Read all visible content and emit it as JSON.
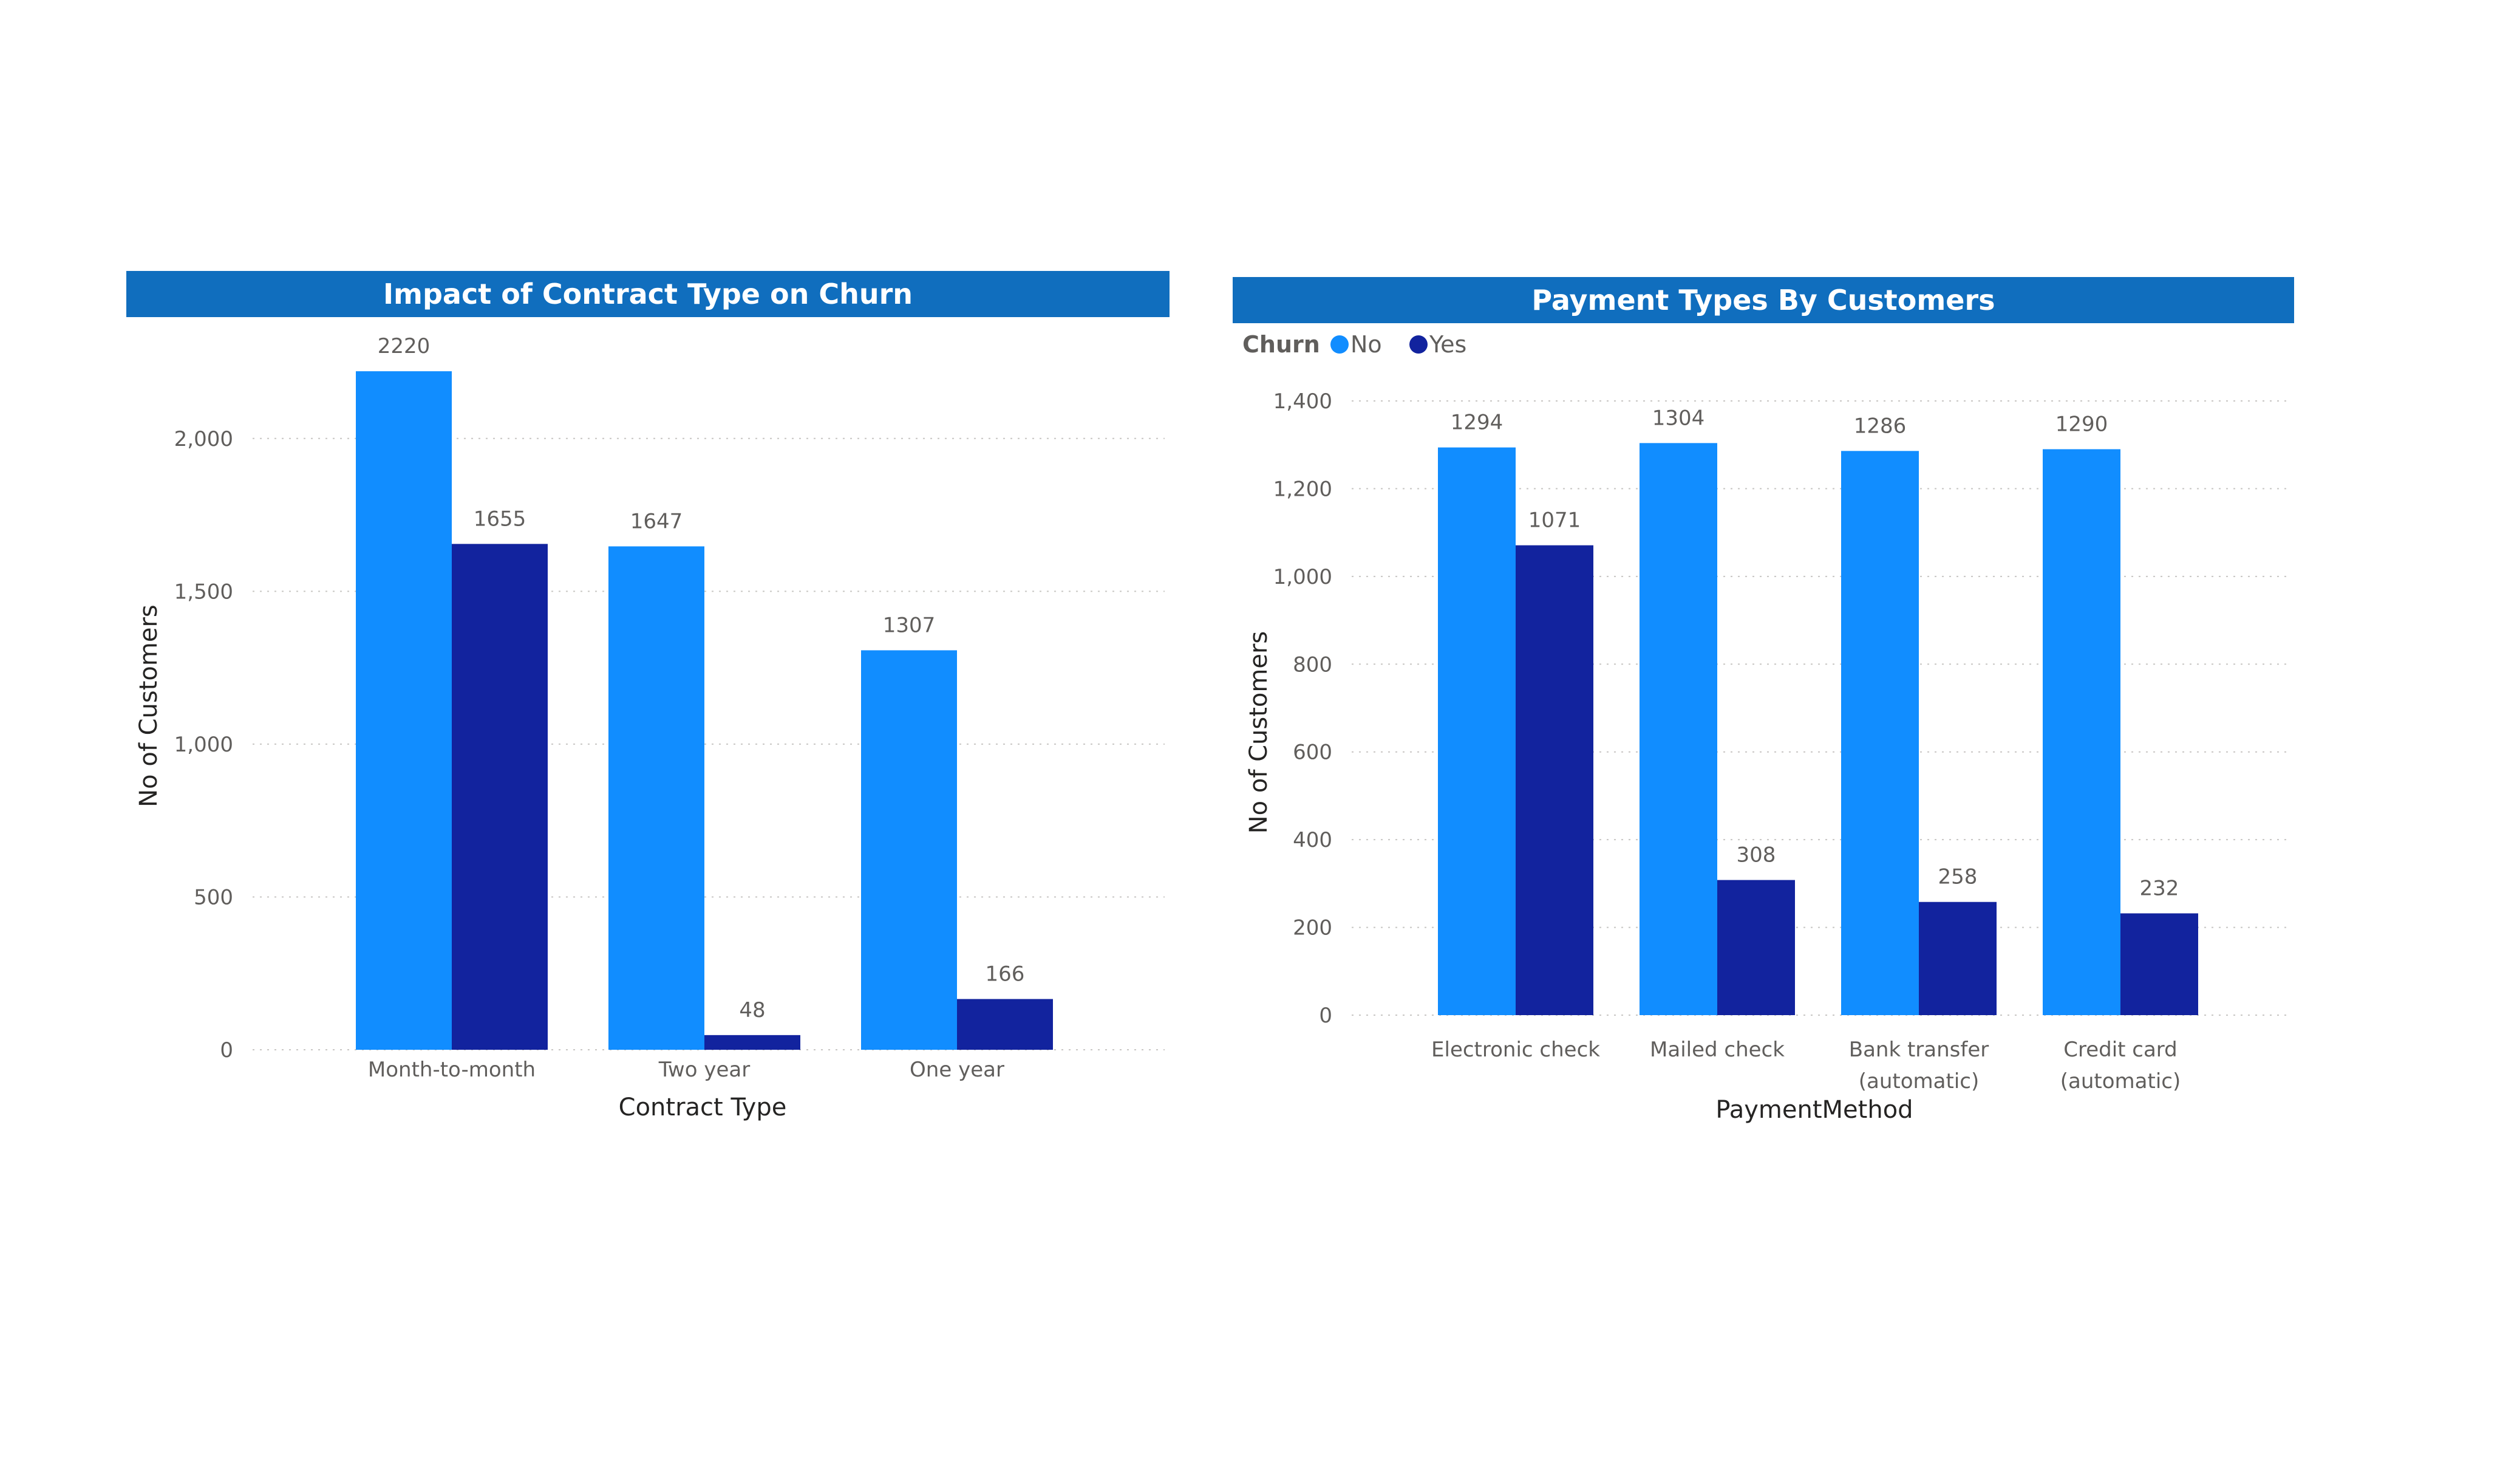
{
  "colors": {
    "no": "#118dff",
    "yes": "#12239e",
    "title_bg": "#106ebe"
  },
  "chart_data": [
    {
      "id": "contract",
      "type": "bar",
      "title": "Impact of Contract Type on Churn",
      "xlabel": "Contract Type",
      "ylabel": "No of Customers",
      "ylim": [
        0,
        2250
      ],
      "yticks": [
        0,
        500,
        1000,
        1500,
        2000
      ],
      "ytick_labels": [
        "0",
        "500",
        "1,000",
        "1,500",
        "2,000"
      ],
      "grid": true,
      "categories": [
        "Month-to-month",
        "Two year",
        "One year"
      ],
      "series": [
        {
          "key": "no",
          "values": [
            2220,
            1647,
            1307
          ]
        },
        {
          "key": "yes",
          "values": [
            1655,
            48,
            166
          ]
        }
      ],
      "data_labels": true
    },
    {
      "id": "payment",
      "type": "bar",
      "title": "Payment Types By Customers",
      "xlabel": "PaymentMethod",
      "ylabel": "No of Customers",
      "ylim": [
        0,
        1400
      ],
      "yticks": [
        0,
        200,
        400,
        600,
        800,
        1000,
        1200,
        1400
      ],
      "ytick_labels": [
        "0",
        "200",
        "400",
        "600",
        "800",
        "1,000",
        "1,200",
        "1,400"
      ],
      "grid": true,
      "legend": {
        "title": "Churn",
        "position": "top-left",
        "entries": [
          "No",
          "Yes"
        ]
      },
      "categories": [
        "Electronic check",
        "Mailed check",
        "Bank transfer (automatic)",
        "Credit card (automatic)"
      ],
      "category_lines": [
        [
          "Electronic check"
        ],
        [
          "Mailed check"
        ],
        [
          "Bank transfer",
          "(automatic)"
        ],
        [
          "Credit card",
          "(automatic)"
        ]
      ],
      "series": [
        {
          "name": "No",
          "key": "no",
          "values": [
            1294,
            1304,
            1286,
            1290
          ]
        },
        {
          "name": "Yes",
          "key": "yes",
          "values": [
            1071,
            308,
            258,
            232
          ]
        }
      ],
      "data_labels": true
    }
  ]
}
